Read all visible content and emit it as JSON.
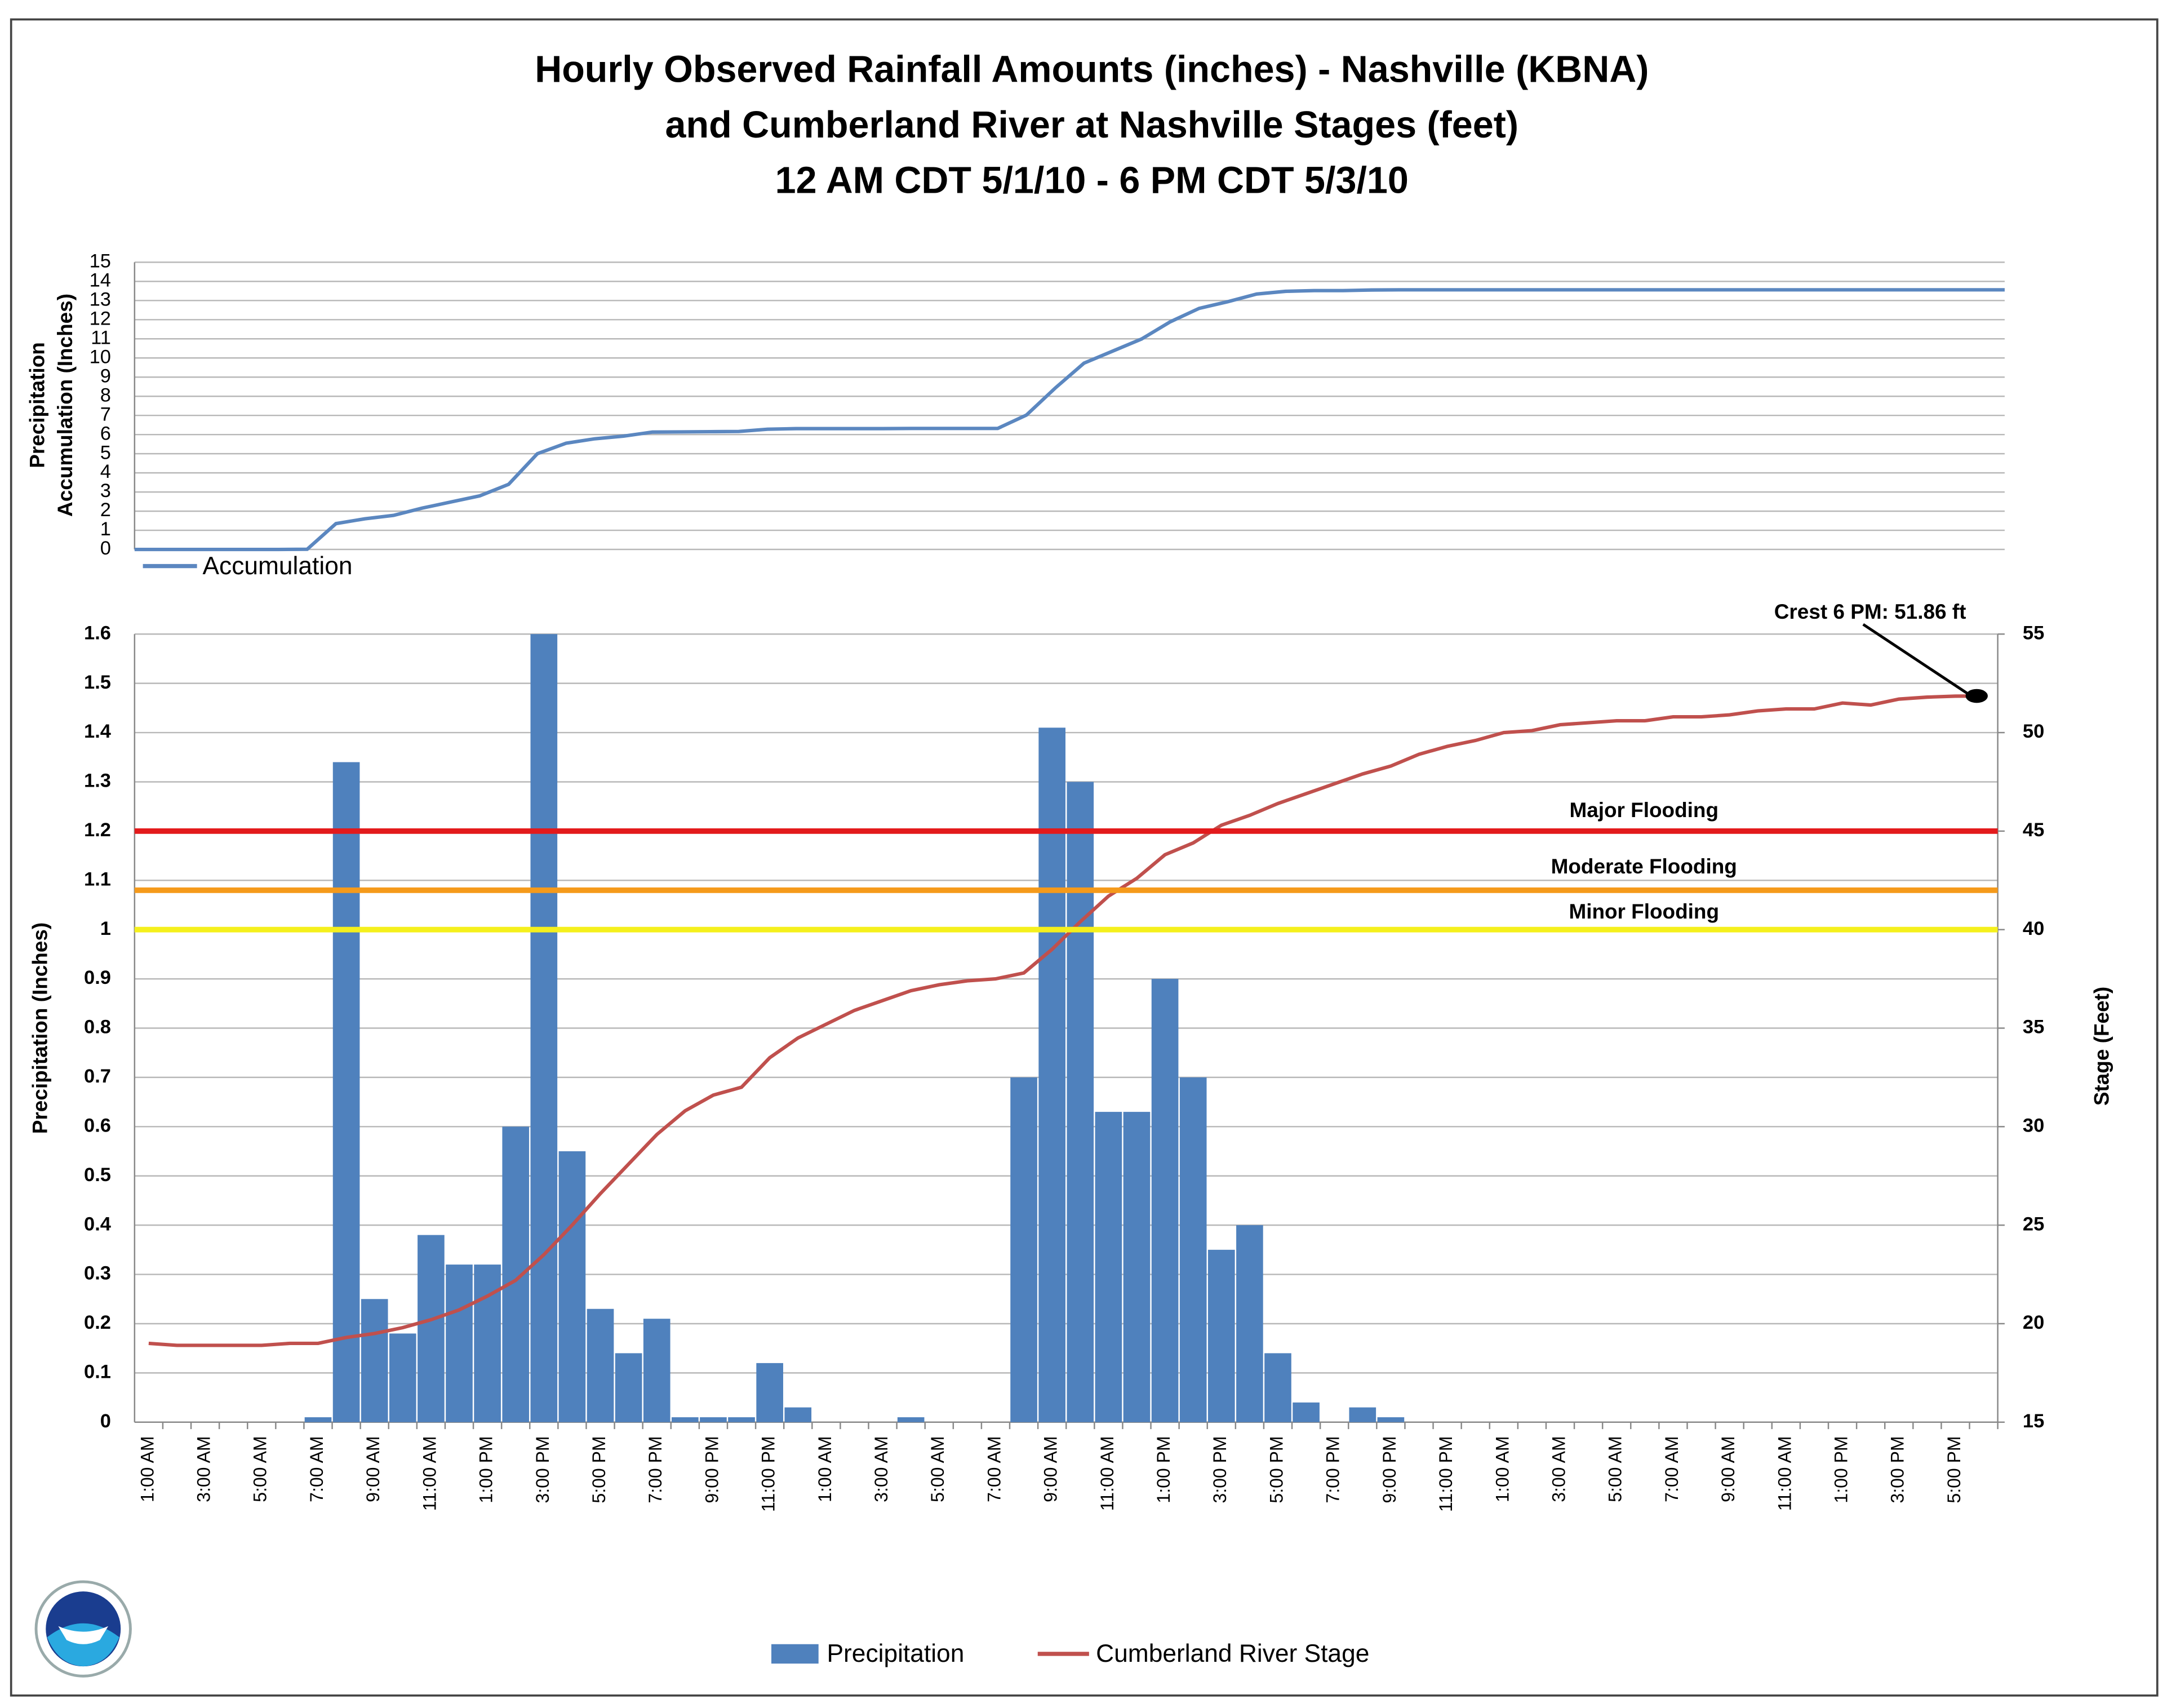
{
  "chart_data": [
    {
      "type": "line",
      "title": [
        "Hourly Observed Rainfall Amounts (inches) - Nashville (KBNA)",
        "and Cumberland River at Nashville Stages (feet)",
        "12 AM CDT 5/1/10 - 6 PM CDT 5/3/10"
      ],
      "y_label": [
        "Precipitation",
        "Accumulation (Inches)"
      ],
      "ylim": [
        0,
        15
      ],
      "yticks": [
        0,
        1,
        2,
        3,
        4,
        5,
        6,
        7,
        8,
        9,
        10,
        11,
        12,
        13,
        14,
        15
      ],
      "grid": true,
      "series": [
        {
          "name": "Accumulation",
          "color": "#5b87c0",
          "values": [
            0,
            0,
            0,
            0,
            0,
            0,
            0.01,
            1.35,
            1.6,
            1.78,
            2.16,
            2.48,
            2.8,
            3.4,
            5,
            5.55,
            5.78,
            5.92,
            6.13,
            6.14,
            6.15,
            6.16,
            6.28,
            6.31,
            6.31,
            6.31,
            6.31,
            6.32,
            6.32,
            6.32,
            6.32,
            7.02,
            8.43,
            9.73,
            10.36,
            10.99,
            11.89,
            12.59,
            12.94,
            13.34,
            13.48,
            13.52,
            13.52,
            13.55,
            13.56,
            13.56,
            13.56,
            13.56,
            13.56,
            13.56,
            13.56,
            13.56,
            13.56,
            13.56,
            13.56,
            13.56,
            13.56,
            13.56,
            13.56,
            13.56,
            13.56,
            13.56,
            13.56,
            13.56,
            13.56,
            13.56
          ]
        }
      ]
    },
    {
      "type": "bar",
      "y_label": "Precipitation (Inches)",
      "y2_label": "Stage (Feet)",
      "ylim": [
        0,
        1.6
      ],
      "yticks": [
        0,
        0.1,
        0.2,
        0.3,
        0.4,
        0.5,
        0.6,
        0.7,
        0.8,
        0.9,
        1,
        1.1,
        1.2,
        1.3,
        1.4,
        1.5,
        1.6
      ],
      "grid": true,
      "y2lim": [
        15,
        55
      ],
      "y2ticks": [
        15,
        20,
        25,
        30,
        35,
        40,
        45,
        50,
        55
      ],
      "categories": [
        "1:00 AM",
        null,
        "3:00 AM",
        null,
        "5:00 AM",
        null,
        "7:00 AM",
        null,
        "9:00 AM",
        null,
        "11:00 AM",
        null,
        "1:00 PM",
        null,
        "3:00 PM",
        null,
        "5:00 PM",
        null,
        "7:00 PM",
        null,
        "9:00 PM",
        null,
        "11:00 PM",
        null,
        "1:00 AM",
        null,
        "3:00 AM",
        null,
        "5:00 AM",
        null,
        "7:00 AM",
        null,
        "9:00 AM",
        null,
        "11:00 AM",
        null,
        "1:00 PM",
        null,
        "3:00 PM",
        null,
        "5:00 PM",
        null,
        "7:00 PM",
        null,
        "9:00 PM",
        null,
        "11:00 PM",
        null,
        "1:00 AM",
        null,
        "3:00 AM",
        null,
        "5:00 AM",
        null,
        "7:00 AM",
        null,
        "9:00 AM",
        null,
        "11:00 AM",
        null,
        "1:00 PM",
        null,
        "3:00 PM",
        null,
        "5:00 PM",
        null
      ],
      "series": [
        {
          "name": "Precipitation",
          "type": "bar",
          "color": "#4f81bd",
          "values": [
            0,
            0,
            0,
            0,
            0,
            0,
            0.01,
            1.34,
            0.25,
            0.18,
            0.38,
            0.32,
            0.32,
            0.6,
            1.6,
            0.55,
            0.23,
            0.14,
            0.21,
            0.01,
            0.01,
            0.01,
            0.12,
            0.03,
            0,
            0,
            0,
            0.01,
            0,
            0,
            0,
            0.7,
            1.41,
            1.3,
            0.63,
            0.63,
            0.9,
            0.7,
            0.35,
            0.4,
            0.14,
            0.04,
            0,
            0.03,
            0.01,
            0,
            0,
            0,
            0,
            0,
            0,
            0,
            0,
            0,
            0,
            0,
            0,
            0,
            0,
            0,
            0,
            0,
            0,
            0,
            0,
            0
          ]
        },
        {
          "name": "Cumberland River Stage",
          "type": "line",
          "axis": "y2",
          "color": "#c0504d",
          "values": [
            19,
            18.9,
            18.9,
            18.9,
            18.9,
            19,
            19,
            19.3,
            19.5,
            19.8,
            20.2,
            20.7,
            21.4,
            22.2,
            23.5,
            25,
            26.6,
            28.1,
            29.6,
            30.8,
            31.6,
            32,
            33.5,
            34.5,
            35.2,
            35.9,
            36.4,
            36.9,
            37.2,
            37.4,
            37.5,
            37.8,
            39,
            40.4,
            41.7,
            42.6,
            43.8,
            44.4,
            45.3,
            45.8,
            46.4,
            46.9,
            47.4,
            47.9,
            48.3,
            48.9,
            49.3,
            49.6,
            50,
            50.1,
            50.4,
            50.5,
            50.6,
            50.6,
            50.8,
            50.8,
            50.9,
            51.1,
            51.2,
            51.2,
            51.5,
            51.4,
            51.7,
            51.8,
            51.85,
            51.86
          ]
        }
      ],
      "thresholds": [
        {
          "label": "Major Flooding",
          "value": 45,
          "color": "#e31a1c"
        },
        {
          "label": "Moderate Flooding",
          "value": 42,
          "color": "#f59a1b"
        },
        {
          "label": "Minor Flooding",
          "value": 40,
          "color": "#f5f01c"
        }
      ],
      "annotation": "Crest 6 PM: 51.86 ft"
    }
  ]
}
